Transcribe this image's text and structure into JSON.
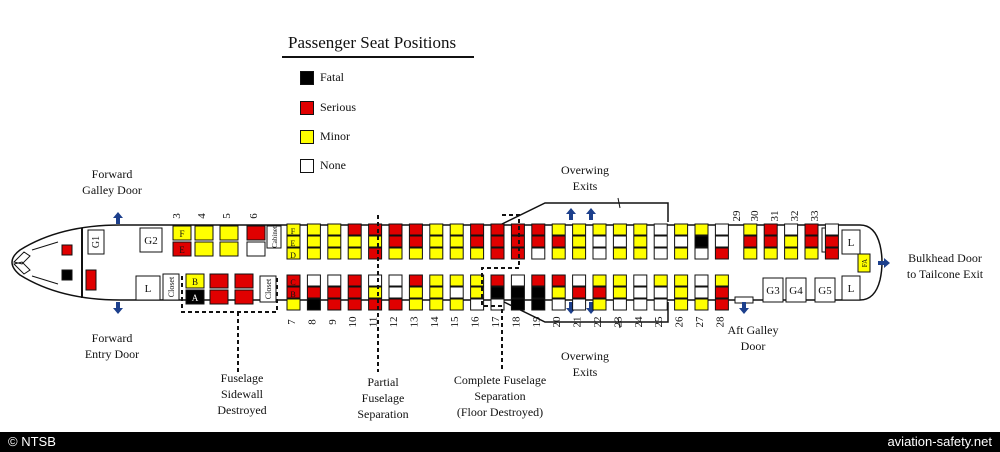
{
  "legend": {
    "title": "Passenger Seat Positions",
    "items": [
      {
        "label": "Fatal",
        "color": "#000000"
      },
      {
        "label": "Serious",
        "color": "#e00000"
      },
      {
        "label": "Minor",
        "color": "#ffff00"
      },
      {
        "label": "None",
        "color": "#ffffff"
      }
    ]
  },
  "labels": {
    "forward_galley_door": [
      "Forward",
      "Galley Door"
    ],
    "forward_entry_door": [
      "Forward",
      "Entry Door"
    ],
    "overwing_exits_top": [
      "Overwing",
      "Exits"
    ],
    "overwing_exits_bottom": [
      "Overwing",
      "Exits"
    ],
    "bulkhead_door": [
      "Bulkhead Door",
      "to Tailcone Exit"
    ],
    "aft_galley_door": [
      "Aft Galley",
      "Door"
    ],
    "sidewall": [
      "Fuselage",
      "Sidewall",
      "Destroyed"
    ],
    "partial": [
      "Partial",
      "Fuselage",
      "Separation"
    ],
    "complete": [
      "Complete Fuselage",
      "Separation",
      "(Floor Destroyed)"
    ]
  },
  "cabin": {
    "galleys": [
      "G1",
      "G2",
      "G3",
      "G4",
      "G5"
    ],
    "lavs": [
      "L",
      "L",
      "L",
      "L"
    ],
    "closets": [
      "Closet",
      "Closet",
      "Closet"
    ],
    "cabinet": "Cabinet",
    "fa": "FA",
    "seat_letters": [
      "A",
      "B",
      "C",
      "D",
      "E",
      "F"
    ]
  },
  "row_numbers_top": [
    "3",
    "4",
    "5",
    "6",
    "29",
    "30",
    "31",
    "32",
    "33"
  ],
  "row_numbers_bottom": [
    "7",
    "8",
    "9",
    "10",
    "11",
    "12",
    "13",
    "14",
    "15",
    "16",
    "17",
    "18",
    "19",
    "20",
    "21",
    "22",
    "23",
    "24",
    "25",
    "26",
    "27",
    "28"
  ],
  "seats": {
    "rows": [
      "7",
      "8",
      "9",
      "10",
      "11",
      "12",
      "13",
      "14",
      "15",
      "16",
      "17",
      "18",
      "19",
      "20",
      "21",
      "22",
      "23",
      "24",
      "25",
      "26",
      "27",
      "28",
      "29",
      "30",
      "31",
      "32",
      "33"
    ],
    "D": [
      "Y",
      "Y",
      "Y",
      "Y",
      "R",
      "Y",
      "Y",
      "Y",
      "Y",
      "Y",
      "R",
      "R",
      "W",
      "Y",
      "Y",
      "W",
      "Y",
      "Y",
      "W",
      "Y",
      "W",
      "R",
      "Y",
      "Y",
      "Y",
      "Y",
      "R"
    ],
    "E": [
      "Y",
      "Y",
      "Y",
      "Y",
      "Y",
      "R",
      "R",
      "Y",
      "Y",
      "R",
      "R",
      "R",
      "R",
      "R",
      "Y",
      "W",
      "W",
      "Y",
      "W",
      "W",
      "K",
      "W",
      "R",
      "R",
      "Y",
      "R",
      "R"
    ],
    "F": [
      "Y",
      "Y",
      "Y",
      "R",
      "R",
      "R",
      "R",
      "Y",
      "Y",
      "R",
      "R",
      "R",
      "R",
      "Y",
      "Y",
      "Y",
      "Y",
      "Y",
      "W",
      "Y",
      "Y",
      "W",
      "Y",
      "R",
      "W",
      "R",
      "W"
    ],
    "A": [
      "Y",
      "K",
      "R",
      "R",
      "R",
      "R",
      "Y",
      "Y",
      "Y",
      "W",
      "W",
      "K",
      "K",
      "W",
      "W",
      "Y",
      "W",
      "W",
      "W",
      "Y",
      "Y",
      "R"
    ],
    "B": [
      "R",
      "R",
      "R",
      "R",
      "Y",
      "W",
      "Y",
      "Y",
      "W",
      "Y",
      "K",
      "K",
      "K",
      "Y",
      "R",
      "R",
      "Y",
      "W",
      "W",
      "Y",
      "W",
      "R"
    ],
    "C": [
      "R",
      "W",
      "W",
      "R",
      "W",
      "W",
      "R",
      "Y",
      "Y",
      "Y",
      "R",
      "W",
      "R",
      "R",
      "W",
      "Y",
      "Y",
      "W",
      "Y",
      "Y",
      "W",
      "Y"
    ]
  },
  "footer": {
    "left": "© NTSB",
    "right": "aviation-safety.net"
  }
}
